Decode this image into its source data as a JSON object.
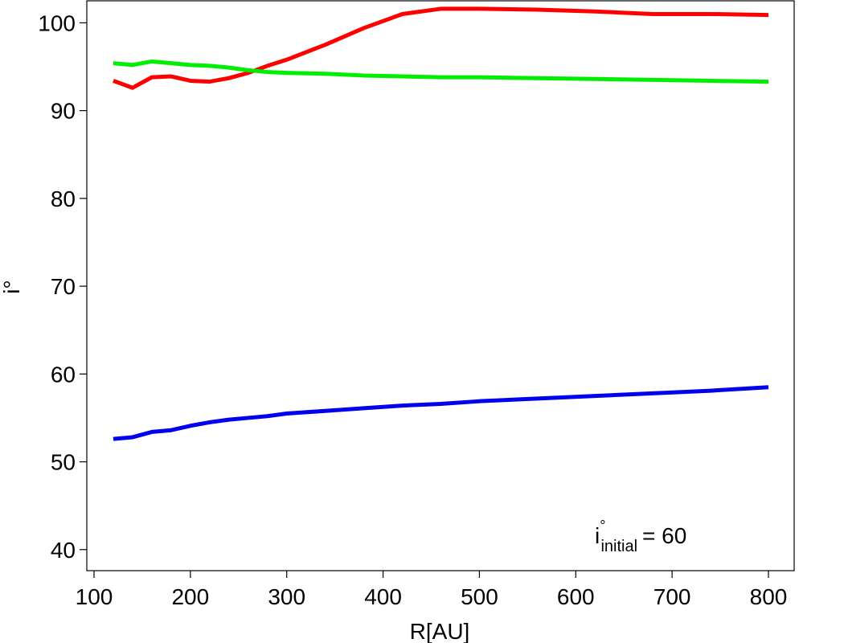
{
  "chart_data": {
    "type": "line",
    "x_label": "R[AU]",
    "y_label": "i°",
    "annotation": {
      "base": "i",
      "sup": "°",
      "sub": "initial",
      "rest": "= 60"
    },
    "x": [
      120,
      140,
      160,
      180,
      200,
      220,
      240,
      260,
      280,
      300,
      340,
      380,
      420,
      460,
      500,
      560,
      620,
      680,
      740,
      800
    ],
    "series": [
      {
        "color": "#ff0000",
        "values": [
          93.4,
          92.6,
          93.8,
          93.9,
          93.4,
          93.3,
          93.7,
          94.3,
          95.1,
          95.8,
          97.5,
          99.4,
          101.0,
          101.6,
          101.6,
          101.5,
          101.3,
          101.0,
          101.0,
          100.9
        ]
      },
      {
        "color": "#00ee00",
        "values": [
          95.4,
          95.2,
          95.6,
          95.4,
          95.2,
          95.1,
          94.9,
          94.6,
          94.4,
          94.3,
          94.2,
          94.0,
          93.9,
          93.8,
          93.8,
          93.7,
          93.6,
          93.5,
          93.4,
          93.3
        ]
      },
      {
        "color": "#0000ee",
        "values": [
          52.6,
          52.8,
          53.4,
          53.6,
          54.1,
          54.5,
          54.8,
          55.0,
          55.2,
          55.5,
          55.8,
          56.1,
          56.4,
          56.6,
          56.9,
          57.2,
          57.5,
          57.8,
          58.1,
          58.5
        ]
      }
    ],
    "xlim": [
      92.5,
      826.7
    ],
    "ylim": [
      37.6,
      102.6
    ],
    "xticks": [
      100,
      200,
      300,
      400,
      500,
      600,
      700,
      800
    ],
    "yticks": [
      40,
      50,
      60,
      70,
      80,
      90,
      100
    ]
  }
}
